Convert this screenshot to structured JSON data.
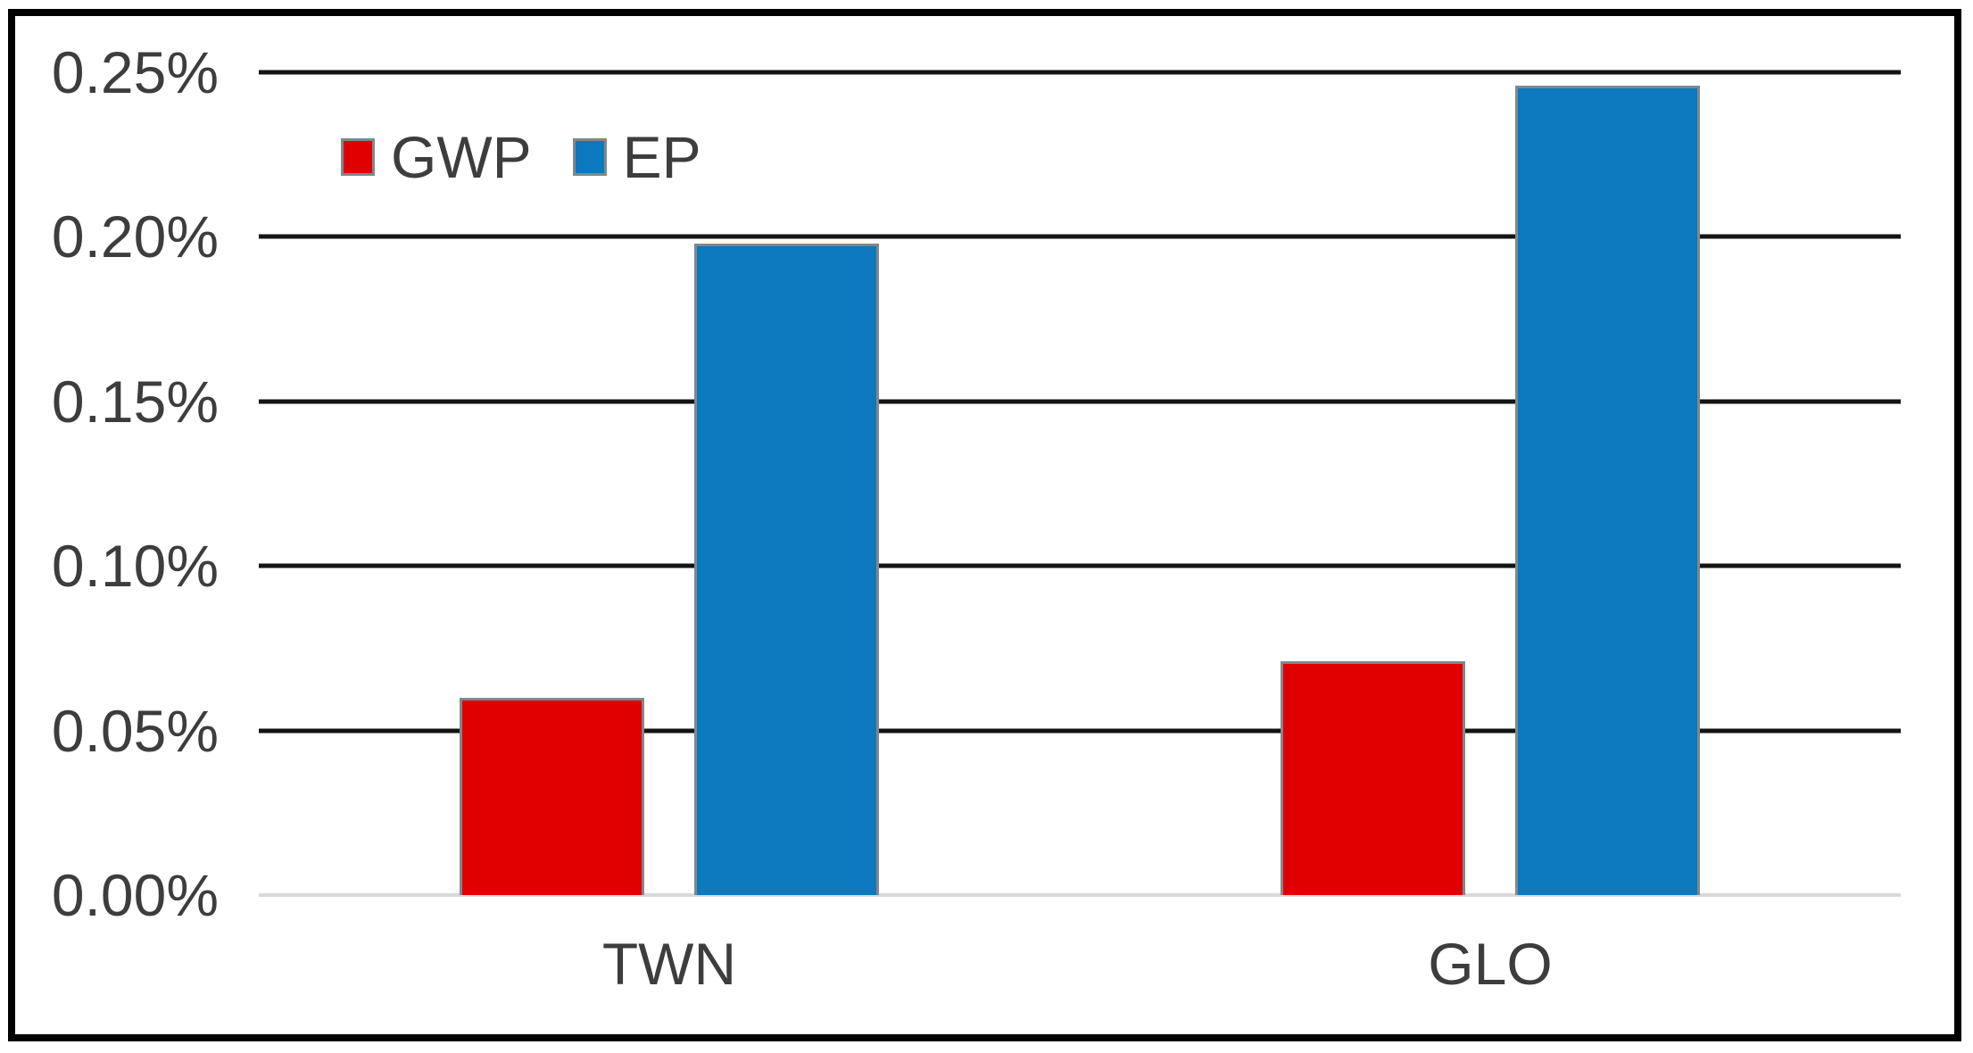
{
  "chart_data": {
    "type": "bar",
    "title": "",
    "xlabel": "",
    "ylabel": "",
    "unit": "%",
    "categories": [
      "TWN",
      "GLO"
    ],
    "series": [
      {
        "name": "GWP",
        "color": "#e10000",
        "values": [
          0.06,
          0.071
        ]
      },
      {
        "name": "EP",
        "color": "#0c78be",
        "values": [
          0.198,
          0.246
        ]
      }
    ],
    "ylim": [
      0,
      0.25
    ],
    "ytick_step": 0.05,
    "ytick_labels": [
      "0.00%",
      "0.05%",
      "0.10%",
      "0.15%",
      "0.20%",
      "0.25%"
    ],
    "grid": true,
    "legend_position": "inside-top-left",
    "legend_labels": [
      "GWP",
      "EP"
    ]
  },
  "colors": {
    "gridline": "#141414",
    "baseline": "#d9d9d9",
    "bar_outline": "#80888c",
    "text": "#3d3d3d",
    "frame": "#000000",
    "background": "#ffffff",
    "gwp": "#e10000",
    "ep": "#0c78be"
  }
}
